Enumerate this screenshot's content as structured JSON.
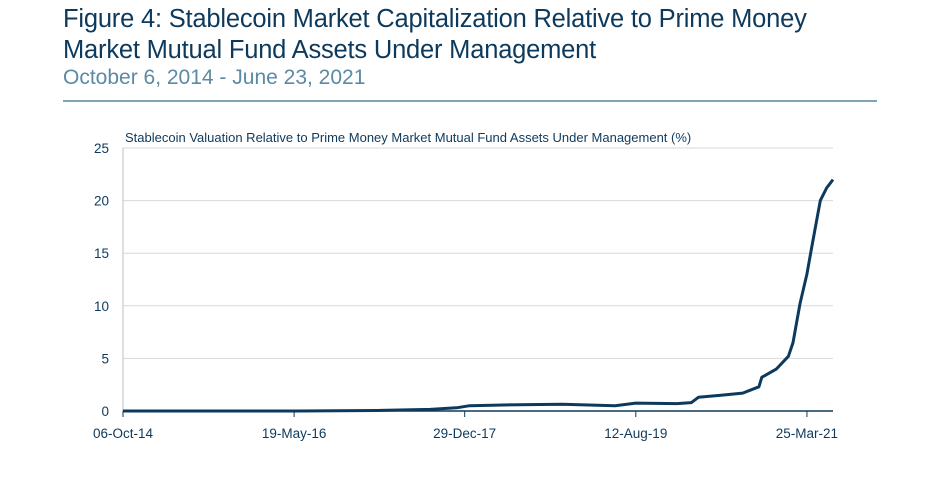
{
  "header": {
    "title_line1": "Figure 4:  Stablecoin Market Capitalization Relative to Prime Money",
    "title_line2": "Market Mutual Fund Assets Under Management",
    "subtitle": "October 6, 2014 - June 23, 2021"
  },
  "chart_data": {
    "type": "line",
    "title": "",
    "ylabel": "Stablecoin Valuation Relative to Prime Money Market Mutual Fund Assets Under Management (%)",
    "xlabel": "",
    "xlim": [
      "2014-10-06",
      "2021-06-23"
    ],
    "ylim": [
      0,
      25
    ],
    "yticks": [
      0,
      5,
      10,
      15,
      20,
      25
    ],
    "xticks": [
      {
        "date": "2014-10-06",
        "label": "06-Oct-14"
      },
      {
        "date": "2016-05-19",
        "label": "19-May-16"
      },
      {
        "date": "2017-12-29",
        "label": "29-Dec-17"
      },
      {
        "date": "2019-08-12",
        "label": "12-Aug-19"
      },
      {
        "date": "2021-03-25",
        "label": "25-Mar-21"
      }
    ],
    "grid": "horizontal",
    "line_color": "#0d3a5c",
    "series": [
      {
        "x": [
          "2014-10-06",
          "2016-06-01",
          "2017-03-01",
          "2017-09-01",
          "2017-12-01",
          "2018-01-15",
          "2018-07-01",
          "2018-12-01",
          "2019-06-01",
          "2019-08-12",
          "2020-01-01",
          "2020-02-20",
          "2020-03-15",
          "2020-06-01",
          "2020-08-15",
          "2020-10-10",
          "2020-10-20",
          "2020-12-10",
          "2021-01-20",
          "2021-02-05",
          "2021-03-01",
          "2021-03-25",
          "2021-04-10",
          "2021-05-10",
          "2021-06-01",
          "2021-06-23"
        ],
        "y": [
          0,
          0,
          0.05,
          0.15,
          0.3,
          0.5,
          0.6,
          0.65,
          0.5,
          0.75,
          0.7,
          0.8,
          1.3,
          1.5,
          1.7,
          2.3,
          3.2,
          4.0,
          5.2,
          6.5,
          10.2,
          13,
          15.5,
          20,
          21.2,
          22
        ]
      }
    ]
  }
}
